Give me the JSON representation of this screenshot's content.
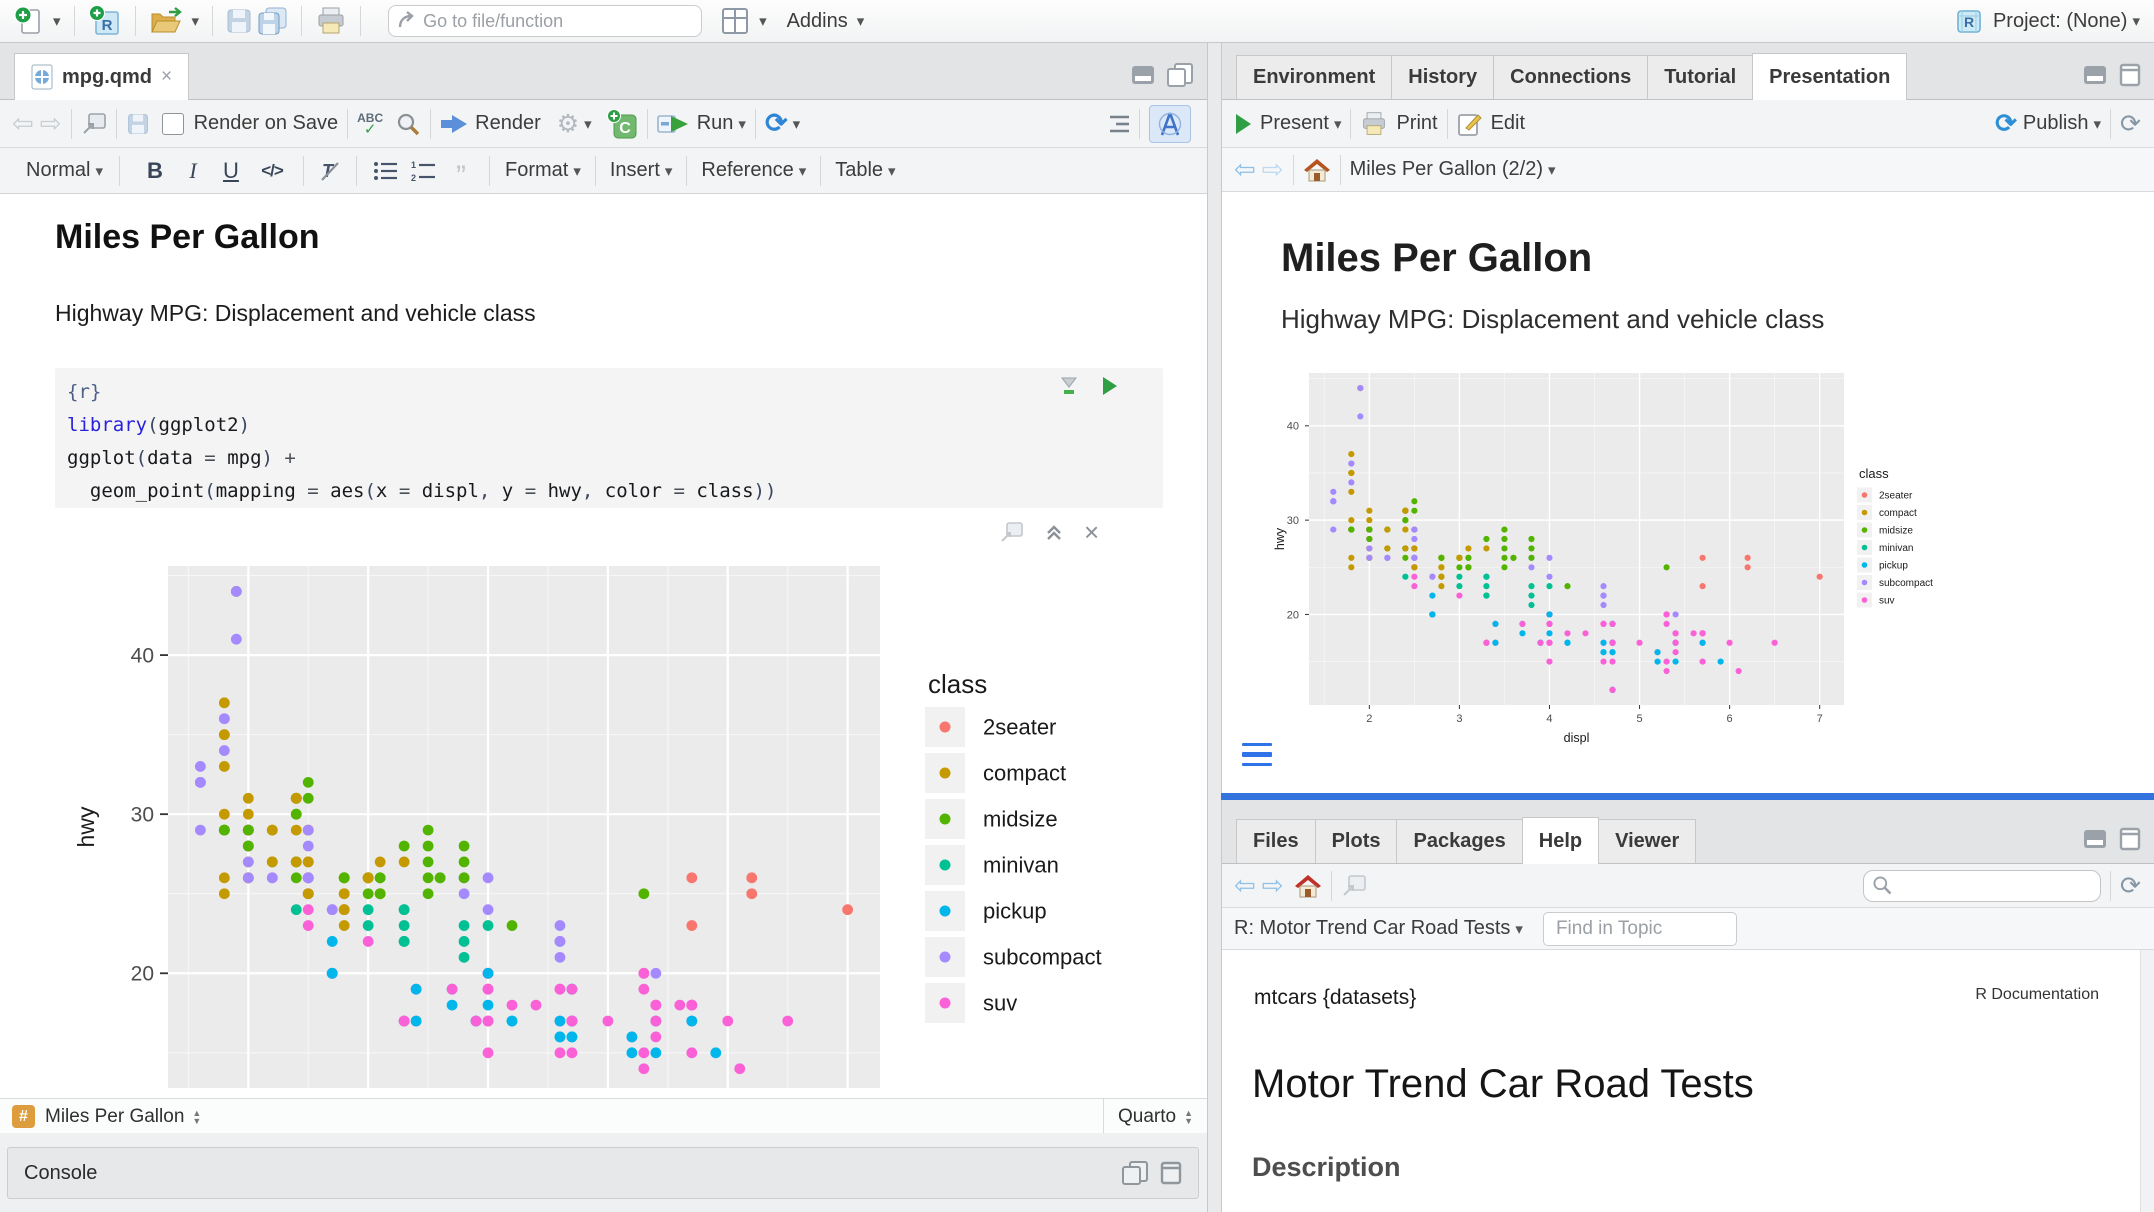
{
  "app": {
    "top_toolbar": {
      "search_placeholder": "Go to file/function",
      "addins_label": "Addins",
      "project_label": "Project: (None)"
    }
  },
  "editor": {
    "tab_label": "mpg.qmd",
    "toolbar": {
      "render_on_save_label": "Render on Save",
      "spellcheck_label": "ABC",
      "render_label": "Render",
      "run_label": "Run"
    },
    "format_bar": {
      "style_label": "Normal",
      "bold_label": "B",
      "italic_label": "I",
      "underline_label": "U",
      "code_label": "</>",
      "format_label": "Format",
      "insert_label": "Insert",
      "reference_label": "Reference",
      "table_label": "Table"
    },
    "doc": {
      "title": "Miles Per Gallon",
      "subtitle": "Highway MPG: Displacement and vehicle class"
    },
    "code_chunk": {
      "lines": [
        [
          {
            "t": "{r}",
            "k": "meta"
          }
        ],
        [
          {
            "t": "library",
            "k": "kw"
          },
          {
            "t": "(",
            "k": "br"
          },
          {
            "t": "ggplot2",
            "k": "txt"
          },
          {
            "t": ")",
            "k": "br"
          }
        ],
        [
          {
            "t": "ggplot",
            "k": "txt"
          },
          {
            "t": "(",
            "k": "br"
          },
          {
            "t": "data",
            "k": "txt"
          },
          {
            "t": " = ",
            "k": "op"
          },
          {
            "t": "mpg",
            "k": "txt"
          },
          {
            "t": ")",
            "k": "br"
          },
          {
            "t": " +",
            "k": "op"
          }
        ],
        [
          {
            "t": "  geom_point",
            "k": "txt"
          },
          {
            "t": "(",
            "k": "br"
          },
          {
            "t": "mapping",
            "k": "txt"
          },
          {
            "t": " = ",
            "k": "op"
          },
          {
            "t": "aes",
            "k": "txt"
          },
          {
            "t": "(",
            "k": "br"
          },
          {
            "t": "x",
            "k": "txt"
          },
          {
            "t": " = ",
            "k": "op"
          },
          {
            "t": "displ",
            "k": "txt"
          },
          {
            "t": ", ",
            "k": "br"
          },
          {
            "t": "y",
            "k": "txt"
          },
          {
            "t": " = ",
            "k": "op"
          },
          {
            "t": "hwy",
            "k": "txt"
          },
          {
            "t": ", ",
            "k": "br"
          },
          {
            "t": "color",
            "k": "txt"
          },
          {
            "t": " = ",
            "k": "op"
          },
          {
            "t": "class",
            "k": "txt"
          },
          {
            "t": "))",
            "k": "br"
          }
        ]
      ]
    },
    "status_bar": {
      "badge": "#",
      "section_label": "Miles Per Gallon",
      "mode_label": "Quarto"
    },
    "console": {
      "label": "Console"
    }
  },
  "presentation": {
    "tabs": [
      "Environment",
      "History",
      "Connections",
      "Tutorial",
      "Presentation"
    ],
    "active_tab": "Presentation",
    "toolbar": {
      "present_label": "Present",
      "print_label": "Print",
      "edit_label": "Edit",
      "publish_label": "Publish"
    },
    "nav": {
      "title": "Miles Per Gallon (2/2)"
    },
    "slide": {
      "title": "Miles Per Gallon",
      "subtitle": "Highway MPG: Displacement and vehicle class"
    }
  },
  "help": {
    "tabs": [
      "Files",
      "Plots",
      "Packages",
      "Help",
      "Viewer"
    ],
    "active_tab": "Help",
    "search_value": "",
    "topic_label": "R: Motor Trend Car Road Tests",
    "find_placeholder": "Find in Topic",
    "content": {
      "package_header": "mtcars {datasets}",
      "doc_header": "R Documentation",
      "title": "Motor Trend Car Road Tests",
      "section_heading": "Description"
    }
  },
  "chart_data": {
    "type": "scatter",
    "title": "",
    "xlabel": "displ",
    "ylabel": "hwy",
    "legend_title": "class",
    "legend_position": "right",
    "grid": true,
    "xlim": [
      1.33,
      7.27
    ],
    "ylim": [
      10.4,
      45.6
    ],
    "xticks": [
      2,
      3,
      4,
      5,
      6,
      7
    ],
    "yticks": [
      20,
      30,
      40
    ],
    "classes": [
      {
        "name": "2seater",
        "color": "#F8766D"
      },
      {
        "name": "compact",
        "color": "#C49A00"
      },
      {
        "name": "midsize",
        "color": "#53B400"
      },
      {
        "name": "minivan",
        "color": "#00C094"
      },
      {
        "name": "pickup",
        "color": "#00B6EB"
      },
      {
        "name": "subcompact",
        "color": "#A58AFF"
      },
      {
        "name": "suv",
        "color": "#FB61D7"
      }
    ],
    "points": [
      [
        1.8,
        29,
        1
      ],
      [
        1.8,
        29,
        1
      ],
      [
        2,
        31,
        1
      ],
      [
        2,
        30,
        1
      ],
      [
        2.8,
        26,
        1
      ],
      [
        2.8,
        26,
        1
      ],
      [
        3.1,
        27,
        1
      ],
      [
        1.8,
        26,
        1
      ],
      [
        1.8,
        25,
        1
      ],
      [
        2,
        28,
        1
      ],
      [
        2,
        27,
        1
      ],
      [
        2.8,
        25,
        1
      ],
      [
        2.8,
        25,
        1
      ],
      [
        3.1,
        25,
        1
      ],
      [
        3.1,
        25,
        1
      ],
      [
        2.8,
        24,
        2
      ],
      [
        3.1,
        25,
        2
      ],
      [
        4.2,
        23,
        2
      ],
      [
        5.3,
        20,
        6
      ],
      [
        5.3,
        15,
        6
      ],
      [
        5.3,
        20,
        6
      ],
      [
        5.7,
        17,
        6
      ],
      [
        6,
        17,
        6
      ],
      [
        5.7,
        26,
        0
      ],
      [
        5.7,
        23,
        0
      ],
      [
        6.2,
        26,
        0
      ],
      [
        6.2,
        25,
        0
      ],
      [
        7,
        24,
        0
      ],
      [
        5.3,
        19,
        6
      ],
      [
        5.3,
        14,
        6
      ],
      [
        5.7,
        15,
        6
      ],
      [
        6.5,
        17,
        6
      ],
      [
        2.4,
        27,
        2
      ],
      [
        2.4,
        30,
        2
      ],
      [
        3.1,
        26,
        2
      ],
      [
        3.5,
        29,
        2
      ],
      [
        3.6,
        26,
        2
      ],
      [
        2.4,
        24,
        3
      ],
      [
        3,
        24,
        3
      ],
      [
        3.3,
        22,
        3
      ],
      [
        3.3,
        22,
        3
      ],
      [
        3.3,
        24,
        3
      ],
      [
        3.3,
        24,
        3
      ],
      [
        3.3,
        17,
        3
      ],
      [
        3.8,
        22,
        3
      ],
      [
        3.8,
        21,
        3
      ],
      [
        3.8,
        23,
        3
      ],
      [
        4,
        23,
        3
      ],
      [
        3.7,
        19,
        4
      ],
      [
        3.7,
        18,
        4
      ],
      [
        3.9,
        17,
        4
      ],
      [
        3.9,
        17,
        4
      ],
      [
        4.7,
        19,
        4
      ],
      [
        4.7,
        19,
        4
      ],
      [
        4.7,
        12,
        4
      ],
      [
        3.9,
        17,
        6
      ],
      [
        4.7,
        17,
        6
      ],
      [
        4.7,
        12,
        6
      ],
      [
        4.7,
        17,
        6
      ],
      [
        5.2,
        16,
        6
      ],
      [
        5.7,
        18,
        6
      ],
      [
        4.7,
        16,
        4
      ],
      [
        4.7,
        12,
        4
      ],
      [
        4.7,
        17,
        4
      ],
      [
        4.7,
        17,
        4
      ],
      [
        4.7,
        16,
        4
      ],
      [
        5.2,
        15,
        4
      ],
      [
        5.2,
        16,
        4
      ],
      [
        5.7,
        17,
        4
      ],
      [
        5.9,
        15,
        4
      ],
      [
        4.6,
        17,
        6
      ],
      [
        5.4,
        17,
        6
      ],
      [
        5.4,
        18,
        6
      ],
      [
        4,
        17,
        6
      ],
      [
        4,
        19,
        6
      ],
      [
        4,
        17,
        6
      ],
      [
        4,
        19,
        6
      ],
      [
        4.6,
        19,
        6
      ],
      [
        4.2,
        17,
        4
      ],
      [
        4.2,
        17,
        4
      ],
      [
        4.6,
        16,
        4
      ],
      [
        4.6,
        16,
        4
      ],
      [
        4.6,
        17,
        4
      ],
      [
        5.4,
        15,
        4
      ],
      [
        5.4,
        17,
        4
      ],
      [
        3.8,
        26,
        5
      ],
      [
        3.8,
        25,
        5
      ],
      [
        4,
        26,
        5
      ],
      [
        4,
        24,
        5
      ],
      [
        4.6,
        21,
        5
      ],
      [
        4.6,
        22,
        5
      ],
      [
        4.6,
        23,
        5
      ],
      [
        4.6,
        22,
        5
      ],
      [
        5.4,
        20,
        5
      ],
      [
        1.6,
        33,
        5
      ],
      [
        1.6,
        32,
        5
      ],
      [
        1.6,
        32,
        5
      ],
      [
        1.6,
        29,
        5
      ],
      [
        1.6,
        32,
        5
      ],
      [
        1.8,
        34,
        5
      ],
      [
        1.8,
        36,
        5
      ],
      [
        1.8,
        36,
        5
      ],
      [
        2,
        29,
        5
      ],
      [
        2.4,
        26,
        2
      ],
      [
        2.4,
        27,
        2
      ],
      [
        2.4,
        30,
        2
      ],
      [
        2.4,
        31,
        2
      ],
      [
        2.5,
        26,
        2
      ],
      [
        2.5,
        26,
        2
      ],
      [
        3.3,
        28,
        2
      ],
      [
        2,
        26,
        5
      ],
      [
        2,
        29,
        5
      ],
      [
        2,
        28,
        5
      ],
      [
        2,
        27,
        5
      ],
      [
        2.7,
        24,
        5
      ],
      [
        2.7,
        24,
        5
      ],
      [
        3,
        22,
        6
      ],
      [
        3.7,
        19,
        6
      ],
      [
        4,
        20,
        6
      ],
      [
        4.7,
        17,
        6
      ],
      [
        4.7,
        12,
        6
      ],
      [
        4.7,
        19,
        6
      ],
      [
        5.7,
        18,
        6
      ],
      [
        6.1,
        14,
        6
      ],
      [
        4,
        15,
        6
      ],
      [
        4.2,
        18,
        6
      ],
      [
        4.4,
        18,
        6
      ],
      [
        4.6,
        15,
        6
      ],
      [
        5.4,
        17,
        6
      ],
      [
        5.4,
        16,
        6
      ],
      [
        5.4,
        18,
        6
      ],
      [
        4,
        17,
        6
      ],
      [
        4,
        19,
        6
      ],
      [
        4.6,
        19,
        6
      ],
      [
        5,
        17,
        6
      ],
      [
        2.4,
        29,
        1
      ],
      [
        2.4,
        27,
        1
      ],
      [
        2.5,
        31,
        2
      ],
      [
        2.5,
        32,
        2
      ],
      [
        3.5,
        27,
        2
      ],
      [
        3.5,
        26,
        2
      ],
      [
        3,
        26,
        2
      ],
      [
        3,
        25,
        2
      ],
      [
        3.5,
        25,
        2
      ],
      [
        3.3,
        17,
        6
      ],
      [
        3.3,
        17,
        6
      ],
      [
        4,
        20,
        6
      ],
      [
        5.6,
        18,
        6
      ],
      [
        3.1,
        26,
        2
      ],
      [
        3.8,
        26,
        2
      ],
      [
        3.8,
        27,
        2
      ],
      [
        3.8,
        28,
        2
      ],
      [
        5.3,
        25,
        2
      ],
      [
        2.5,
        25,
        6
      ],
      [
        2.5,
        24,
        6
      ],
      [
        2.5,
        27,
        6
      ],
      [
        2.5,
        25,
        6
      ],
      [
        2.5,
        26,
        6
      ],
      [
        2.5,
        23,
        6
      ],
      [
        2.2,
        26,
        5
      ],
      [
        2.2,
        26,
        5
      ],
      [
        2.5,
        26,
        5
      ],
      [
        2.5,
        26,
        5
      ],
      [
        2.5,
        25,
        1
      ],
      [
        2.5,
        27,
        1
      ],
      [
        2.5,
        25,
        1
      ],
      [
        2.5,
        27,
        1
      ],
      [
        2.7,
        20,
        6
      ],
      [
        2.7,
        20,
        6
      ],
      [
        3.4,
        19,
        6
      ],
      [
        3.4,
        17,
        6
      ],
      [
        4,
        20,
        6
      ],
      [
        4.7,
        17,
        6
      ],
      [
        2.2,
        29,
        2
      ],
      [
        2.2,
        27,
        2
      ],
      [
        2.4,
        31,
        2
      ],
      [
        2.4,
        31,
        2
      ],
      [
        3,
        26,
        2
      ],
      [
        3,
        26,
        2
      ],
      [
        3.5,
        28,
        2
      ],
      [
        2.2,
        27,
        1
      ],
      [
        2.2,
        29,
        1
      ],
      [
        2.4,
        31,
        1
      ],
      [
        2.4,
        31,
        1
      ],
      [
        3,
        26,
        1
      ],
      [
        3,
        26,
        1
      ],
      [
        3.3,
        27,
        1
      ],
      [
        1.8,
        30,
        1
      ],
      [
        1.8,
        33,
        1
      ],
      [
        1.8,
        35,
        1
      ],
      [
        1.8,
        37,
        1
      ],
      [
        1.8,
        35,
        1
      ],
      [
        4.7,
        15,
        6
      ],
      [
        5.7,
        18,
        6
      ],
      [
        3,
        23,
        3
      ],
      [
        3.3,
        23,
        3
      ],
      [
        2.7,
        20,
        4
      ],
      [
        2.7,
        20,
        4
      ],
      [
        2.7,
        22,
        4
      ],
      [
        3.4,
        17,
        4
      ],
      [
        3.4,
        19,
        4
      ],
      [
        4,
        18,
        4
      ],
      [
        4,
        20,
        4
      ],
      [
        2,
        29,
        1
      ],
      [
        2,
        26,
        1
      ],
      [
        2,
        29,
        1
      ],
      [
        2,
        29,
        1
      ],
      [
        2.8,
        24,
        1
      ],
      [
        1.9,
        44,
        1
      ],
      [
        2,
        29,
        1
      ],
      [
        2,
        26,
        1
      ],
      [
        2,
        29,
        1
      ],
      [
        2,
        29,
        1
      ],
      [
        2.5,
        29,
        1
      ],
      [
        2.5,
        29,
        1
      ],
      [
        2.8,
        23,
        1
      ],
      [
        2.8,
        24,
        1
      ],
      [
        1.9,
        44,
        5
      ],
      [
        1.9,
        41,
        5
      ],
      [
        2,
        29,
        5
      ],
      [
        2,
        26,
        5
      ],
      [
        2.5,
        28,
        5
      ],
      [
        2.5,
        29,
        5
      ],
      [
        1.8,
        29,
        2
      ],
      [
        1.8,
        29,
        2
      ],
      [
        2,
        28,
        2
      ],
      [
        2,
        29,
        2
      ],
      [
        2.8,
        26,
        2
      ],
      [
        2.8,
        26,
        2
      ],
      [
        3.6,
        26,
        2
      ]
    ]
  }
}
